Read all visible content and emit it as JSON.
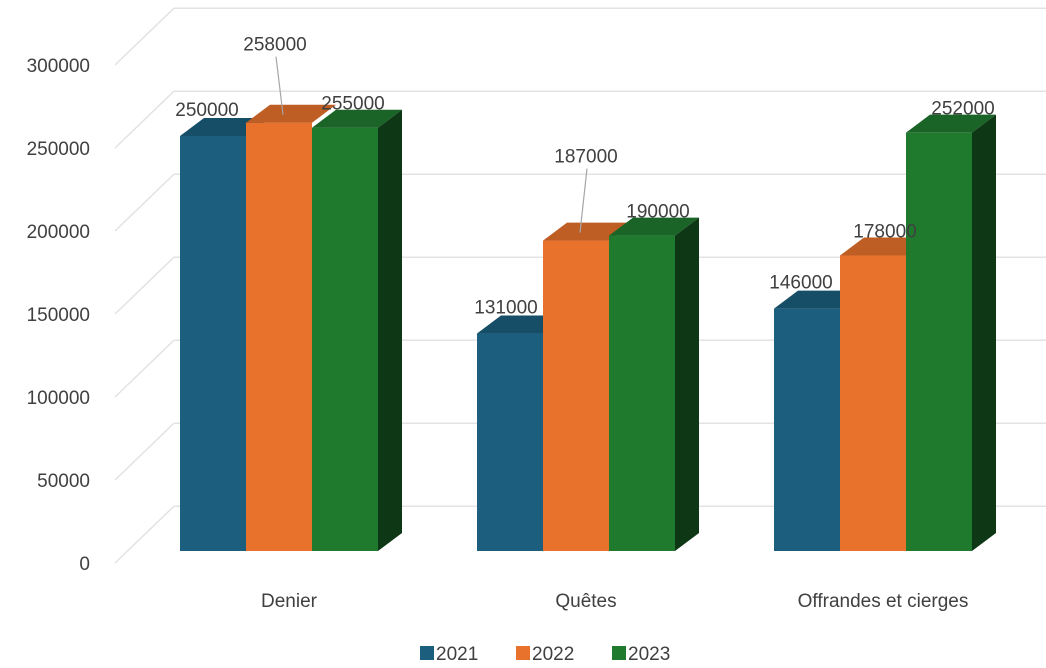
{
  "chart_data": {
    "type": "bar",
    "categories": [
      "Denier",
      "Quêtes",
      "Offrandes et cierges"
    ],
    "series": [
      {
        "name": "2021",
        "values": [
          250000,
          131000,
          146000
        ],
        "color": "#1b5e7e"
      },
      {
        "name": "2022",
        "values": [
          258000,
          187000,
          178000
        ],
        "color": "#e8722c"
      },
      {
        "name": "2023",
        "values": [
          255000,
          190000,
          252000
        ],
        "color": "#1f7a2e"
      }
    ],
    "ylim": [
      0,
      300000
    ],
    "yticks": [
      "0",
      "50000",
      "100000",
      "150000",
      "200000",
      "250000",
      "300000"
    ],
    "grid": true,
    "legend_position": "bottom",
    "style": "3d-clustered-column"
  }
}
